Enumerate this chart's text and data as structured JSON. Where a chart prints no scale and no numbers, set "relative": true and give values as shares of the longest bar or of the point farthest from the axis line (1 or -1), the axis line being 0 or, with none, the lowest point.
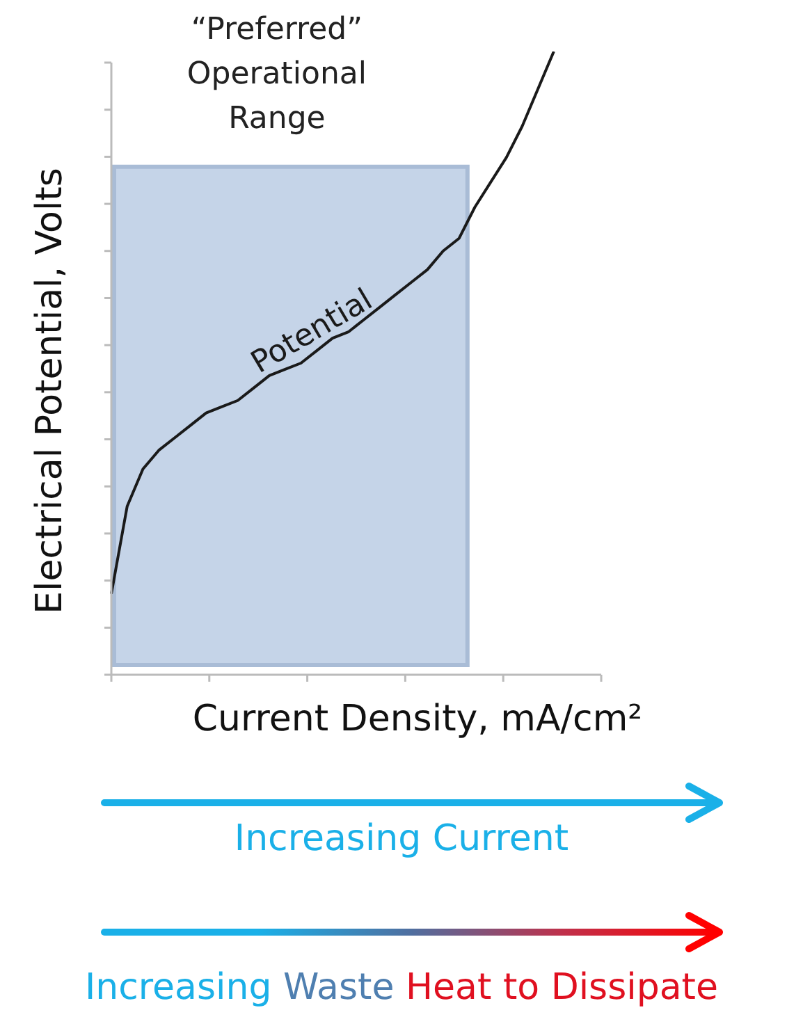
{
  "chart_data": {
    "type": "line",
    "relative": true,
    "tick_labels": false,
    "grid": false,
    "legend": false,
    "marker": "none",
    "line_style": "solid",
    "xlabel": "Current Density, mA/cm²",
    "ylabel": "Electrical Potential, Volts",
    "categories": [
      null,
      null,
      null,
      null,
      null,
      null,
      null,
      null,
      null,
      null,
      null,
      null,
      null,
      null,
      null,
      null,
      null,
      null,
      null,
      null,
      null,
      null,
      null,
      null,
      null,
      null,
      null,
      null,
      null,
      null,
      null,
      null
    ],
    "series": [
      {
        "name": "Potential",
        "color": "#1a1a1a",
        "values": [
          0.13,
          0.27,
          0.33,
          0.36,
          0.38,
          0.4,
          0.42,
          0.43,
          0.44,
          0.46,
          0.48,
          0.49,
          0.5,
          0.52,
          0.54,
          0.55,
          0.57,
          0.59,
          0.61,
          0.63,
          0.65,
          0.68,
          0.7,
          0.75,
          0.79,
          0.83,
          0.88,
          0.94,
          1,
          null,
          null,
          null
        ]
      }
    ],
    "annotations": [
      "“Preferred” Operational Range",
      "Increasing Current",
      "Increasing Waste Heat to Dissipate"
    ]
  }
}
